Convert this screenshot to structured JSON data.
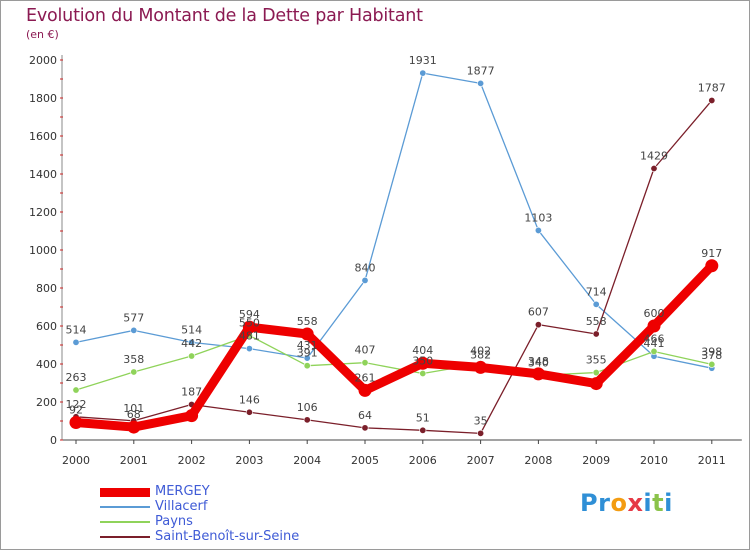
{
  "header": {
    "title": "Evolution du Montant de la Dette par Habitant",
    "subtitle": "(en €)"
  },
  "logo": {
    "text": "Proxiti",
    "letters": [
      {
        "ch": "P",
        "color": "#2f8fd6"
      },
      {
        "ch": "r",
        "color": "#2f8fd6"
      },
      {
        "ch": "o",
        "color": "#f39c12"
      },
      {
        "ch": "x",
        "color": "#e63946"
      },
      {
        "ch": "i",
        "color": "#2f8fd6"
      },
      {
        "ch": "t",
        "color": "#8bc34a"
      },
      {
        "ch": "i",
        "color": "#2f8fd6"
      }
    ]
  },
  "chart_data": {
    "type": "line",
    "title": "Evolution du Montant de la Dette par Habitant",
    "subtitle": "(en €)",
    "xlabel": "",
    "ylabel": "",
    "ylim": [
      0,
      2000
    ],
    "yticks": [
      0,
      200,
      400,
      600,
      800,
      1000,
      1200,
      1400,
      1600,
      1800,
      2000
    ],
    "categories": [
      "2000",
      "2001",
      "2002",
      "2003",
      "2004",
      "2005",
      "2006",
      "2007",
      "2008",
      "2009",
      "2010",
      "2011"
    ],
    "grid": false,
    "legend_position": "bottom-left",
    "series": [
      {
        "name": "MERGEY",
        "color": "#ee0000",
        "values": [
          92,
          68,
          128,
          594,
          558,
          261,
          404,
          382,
          348,
          297,
          600,
          917
        ],
        "labels": [
          "92",
          "68",
          "",
          "594",
          "558",
          "261",
          "404",
          "382",
          "348",
          "",
          "600",
          "917"
        ]
      },
      {
        "name": "Villacerf",
        "color": "#5b9bd5",
        "values": [
          514,
          577,
          514,
          481,
          431,
          840,
          1931,
          1877,
          1103,
          714,
          441,
          378
        ],
        "labels": [
          "514",
          "577",
          "514",
          "481",
          "431",
          "840",
          "1931",
          "1877",
          "1103",
          "714",
          "441",
          "378"
        ]
      },
      {
        "name": "Payns",
        "color": "#8fd35a",
        "values": [
          263,
          358,
          442,
          550,
          391,
          407,
          350,
          402,
          340,
          355,
          466,
          398
        ],
        "labels": [
          "263",
          "358",
          "442",
          "550",
          "391",
          "407",
          "350",
          "402",
          "340",
          "355",
          "466",
          "398"
        ]
      },
      {
        "name": "Saint-Benoît-sur-Seine",
        "color": "#7b1f2a",
        "values": [
          122,
          101,
          187,
          146,
          106,
          64,
          51,
          35,
          607,
          558,
          1429,
          1787
        ],
        "labels": [
          "122",
          "101",
          "187",
          "146",
          "106",
          "64",
          "51",
          "35",
          "607",
          "558",
          "1429",
          "1787"
        ]
      }
    ]
  }
}
